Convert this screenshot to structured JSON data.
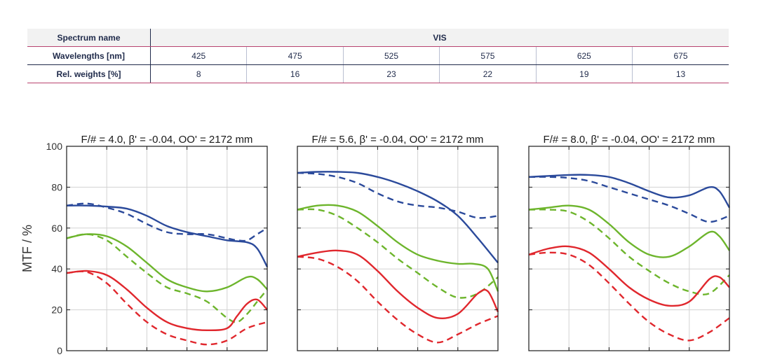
{
  "table": {
    "spectrum_label": "Spectrum name",
    "spectrum_name": "VIS",
    "wavelengths_label": "Wavelengths [nm]",
    "wavelengths": [
      "425",
      "475",
      "525",
      "575",
      "625",
      "675"
    ],
    "weights_label": "Rel. weights [%]",
    "weights": [
      "8",
      "16",
      "23",
      "22",
      "19",
      "13"
    ]
  },
  "colors": {
    "blue": "#2b4a9b",
    "green": "#6db52c",
    "red": "#e0272d",
    "table_text": "#1f2a4a",
    "table_accent": "#b8436f"
  },
  "chart_data": [
    {
      "type": "line",
      "title": "F/# = 4.0, β' = -0.04, OO' = 2172 mm",
      "ylabel": "MTF / %",
      "ylim": [
        0,
        100
      ],
      "yticks": [
        "0",
        "20",
        "40",
        "60",
        "80",
        "100"
      ],
      "xlim": [
        0,
        1
      ],
      "grid": true,
      "series": [
        {
          "color": "blue",
          "style": "solid",
          "x": [
            0,
            0.1,
            0.2,
            0.3,
            0.4,
            0.5,
            0.6,
            0.7,
            0.8,
            0.9,
            0.95,
            1.0
          ],
          "y": [
            71,
            71,
            70.5,
            69.5,
            66,
            61,
            58,
            56,
            54,
            53,
            50,
            41
          ]
        },
        {
          "color": "blue",
          "style": "dashed",
          "x": [
            0,
            0.1,
            0.2,
            0.3,
            0.4,
            0.5,
            0.6,
            0.7,
            0.8,
            0.85,
            0.9,
            0.95,
            1.0
          ],
          "y": [
            71,
            72,
            70,
            67,
            62,
            58,
            57,
            57,
            55,
            54,
            54,
            57,
            60
          ]
        },
        {
          "color": "green",
          "style": "solid",
          "x": [
            0,
            0.1,
            0.2,
            0.3,
            0.4,
            0.5,
            0.6,
            0.7,
            0.8,
            0.9,
            0.95,
            1.0
          ],
          "y": [
            55,
            57,
            56,
            51,
            43,
            35,
            31,
            29,
            31,
            36,
            35,
            30
          ]
        },
        {
          "color": "green",
          "style": "dashed",
          "x": [
            0,
            0.1,
            0.2,
            0.3,
            0.4,
            0.5,
            0.6,
            0.7,
            0.8,
            0.85,
            0.9,
            0.95,
            1.0
          ],
          "y": [
            55,
            57,
            54,
            46,
            38,
            31,
            28,
            24,
            16,
            14,
            18,
            24,
            30
          ]
        },
        {
          "color": "red",
          "style": "solid",
          "x": [
            0,
            0.1,
            0.2,
            0.3,
            0.4,
            0.5,
            0.6,
            0.7,
            0.8,
            0.85,
            0.9,
            0.95,
            1.0
          ],
          "y": [
            38,
            39,
            37,
            30,
            21,
            14,
            11,
            10,
            11,
            17,
            23,
            25,
            20
          ]
        },
        {
          "color": "red",
          "style": "dashed",
          "x": [
            0,
            0.1,
            0.2,
            0.3,
            0.4,
            0.5,
            0.6,
            0.7,
            0.8,
            0.9,
            1.0
          ],
          "y": [
            38,
            38.5,
            33,
            23,
            14,
            8,
            5,
            3,
            5,
            11,
            14
          ]
        }
      ]
    },
    {
      "type": "line",
      "title": "F/# = 5.6, β' = -0.04, OO' = 2172 mm",
      "ylim": [
        0,
        100
      ],
      "xlim": [
        0,
        1
      ],
      "grid": true,
      "series": [
        {
          "color": "blue",
          "style": "solid",
          "x": [
            0,
            0.1,
            0.2,
            0.3,
            0.4,
            0.5,
            0.6,
            0.7,
            0.8,
            0.9,
            1.0
          ],
          "y": [
            87,
            87.5,
            87.5,
            87,
            85,
            82,
            78,
            73,
            66,
            55,
            43
          ]
        },
        {
          "color": "blue",
          "style": "dashed",
          "x": [
            0,
            0.1,
            0.2,
            0.3,
            0.4,
            0.5,
            0.6,
            0.7,
            0.8,
            0.9,
            1.0
          ],
          "y": [
            87,
            86.5,
            85,
            82,
            77,
            73,
            71,
            70,
            68,
            65,
            66
          ]
        },
        {
          "color": "green",
          "style": "solid",
          "x": [
            0,
            0.1,
            0.2,
            0.3,
            0.4,
            0.5,
            0.6,
            0.7,
            0.8,
            0.88,
            0.95,
            1.0
          ],
          "y": [
            69,
            71,
            71,
            68,
            61,
            53,
            47,
            44,
            42.5,
            42.5,
            40,
            29
          ]
        },
        {
          "color": "green",
          "style": "dashed",
          "x": [
            0,
            0.1,
            0.2,
            0.3,
            0.4,
            0.5,
            0.6,
            0.7,
            0.8,
            0.9,
            1.0
          ],
          "y": [
            69,
            69,
            66,
            60,
            53,
            45,
            38,
            31,
            26,
            28,
            36
          ]
        },
        {
          "color": "red",
          "style": "solid",
          "x": [
            0,
            0.1,
            0.2,
            0.3,
            0.4,
            0.5,
            0.6,
            0.7,
            0.8,
            0.9,
            0.95,
            1.0
          ],
          "y": [
            46,
            48,
            49,
            47,
            39,
            29,
            21,
            16,
            18,
            28,
            29,
            19
          ]
        },
        {
          "color": "red",
          "style": "dashed",
          "x": [
            0,
            0.1,
            0.2,
            0.3,
            0.4,
            0.5,
            0.6,
            0.7,
            0.8,
            0.9,
            1.0
          ],
          "y": [
            46,
            45,
            41,
            34,
            24,
            15,
            8,
            4,
            8,
            13,
            17
          ]
        }
      ]
    },
    {
      "type": "line",
      "title": "F/# = 8.0, β' = -0.04, OO' = 2172 mm",
      "ylim": [
        0,
        100
      ],
      "xlim": [
        0,
        1
      ],
      "grid": true,
      "series": [
        {
          "color": "blue",
          "style": "solid",
          "x": [
            0,
            0.1,
            0.2,
            0.3,
            0.4,
            0.5,
            0.6,
            0.7,
            0.8,
            0.9,
            0.95,
            1.0
          ],
          "y": [
            85,
            85.5,
            86,
            86,
            85,
            82,
            78,
            75,
            76,
            80,
            78,
            70
          ]
        },
        {
          "color": "blue",
          "style": "dashed",
          "x": [
            0,
            0.1,
            0.2,
            0.3,
            0.4,
            0.5,
            0.6,
            0.7,
            0.8,
            0.9,
            1.0
          ],
          "y": [
            85,
            85,
            84.5,
            83,
            80,
            77,
            74,
            71,
            67,
            63,
            66
          ]
        },
        {
          "color": "green",
          "style": "solid",
          "x": [
            0,
            0.1,
            0.2,
            0.3,
            0.4,
            0.5,
            0.6,
            0.7,
            0.8,
            0.9,
            0.95,
            1.0
          ],
          "y": [
            69,
            70,
            71,
            69,
            62,
            53,
            47,
            46,
            51,
            58,
            56,
            49
          ]
        },
        {
          "color": "green",
          "style": "dashed",
          "x": [
            0,
            0.1,
            0.2,
            0.3,
            0.4,
            0.5,
            0.6,
            0.7,
            0.8,
            0.9,
            1.0
          ],
          "y": [
            69,
            69,
            68,
            63,
            55,
            46,
            39,
            33,
            29,
            28,
            37
          ]
        },
        {
          "color": "red",
          "style": "solid",
          "x": [
            0,
            0.1,
            0.2,
            0.3,
            0.4,
            0.5,
            0.6,
            0.7,
            0.8,
            0.9,
            0.95,
            1.0
          ],
          "y": [
            47,
            50,
            51,
            48,
            40,
            31,
            25,
            22,
            24,
            35,
            36,
            31
          ]
        },
        {
          "color": "red",
          "style": "dashed",
          "x": [
            0,
            0.1,
            0.2,
            0.3,
            0.4,
            0.5,
            0.6,
            0.7,
            0.8,
            0.9,
            1.0
          ],
          "y": [
            47,
            48,
            47,
            42,
            33,
            23,
            14,
            8,
            5,
            9,
            16
          ]
        }
      ]
    }
  ]
}
